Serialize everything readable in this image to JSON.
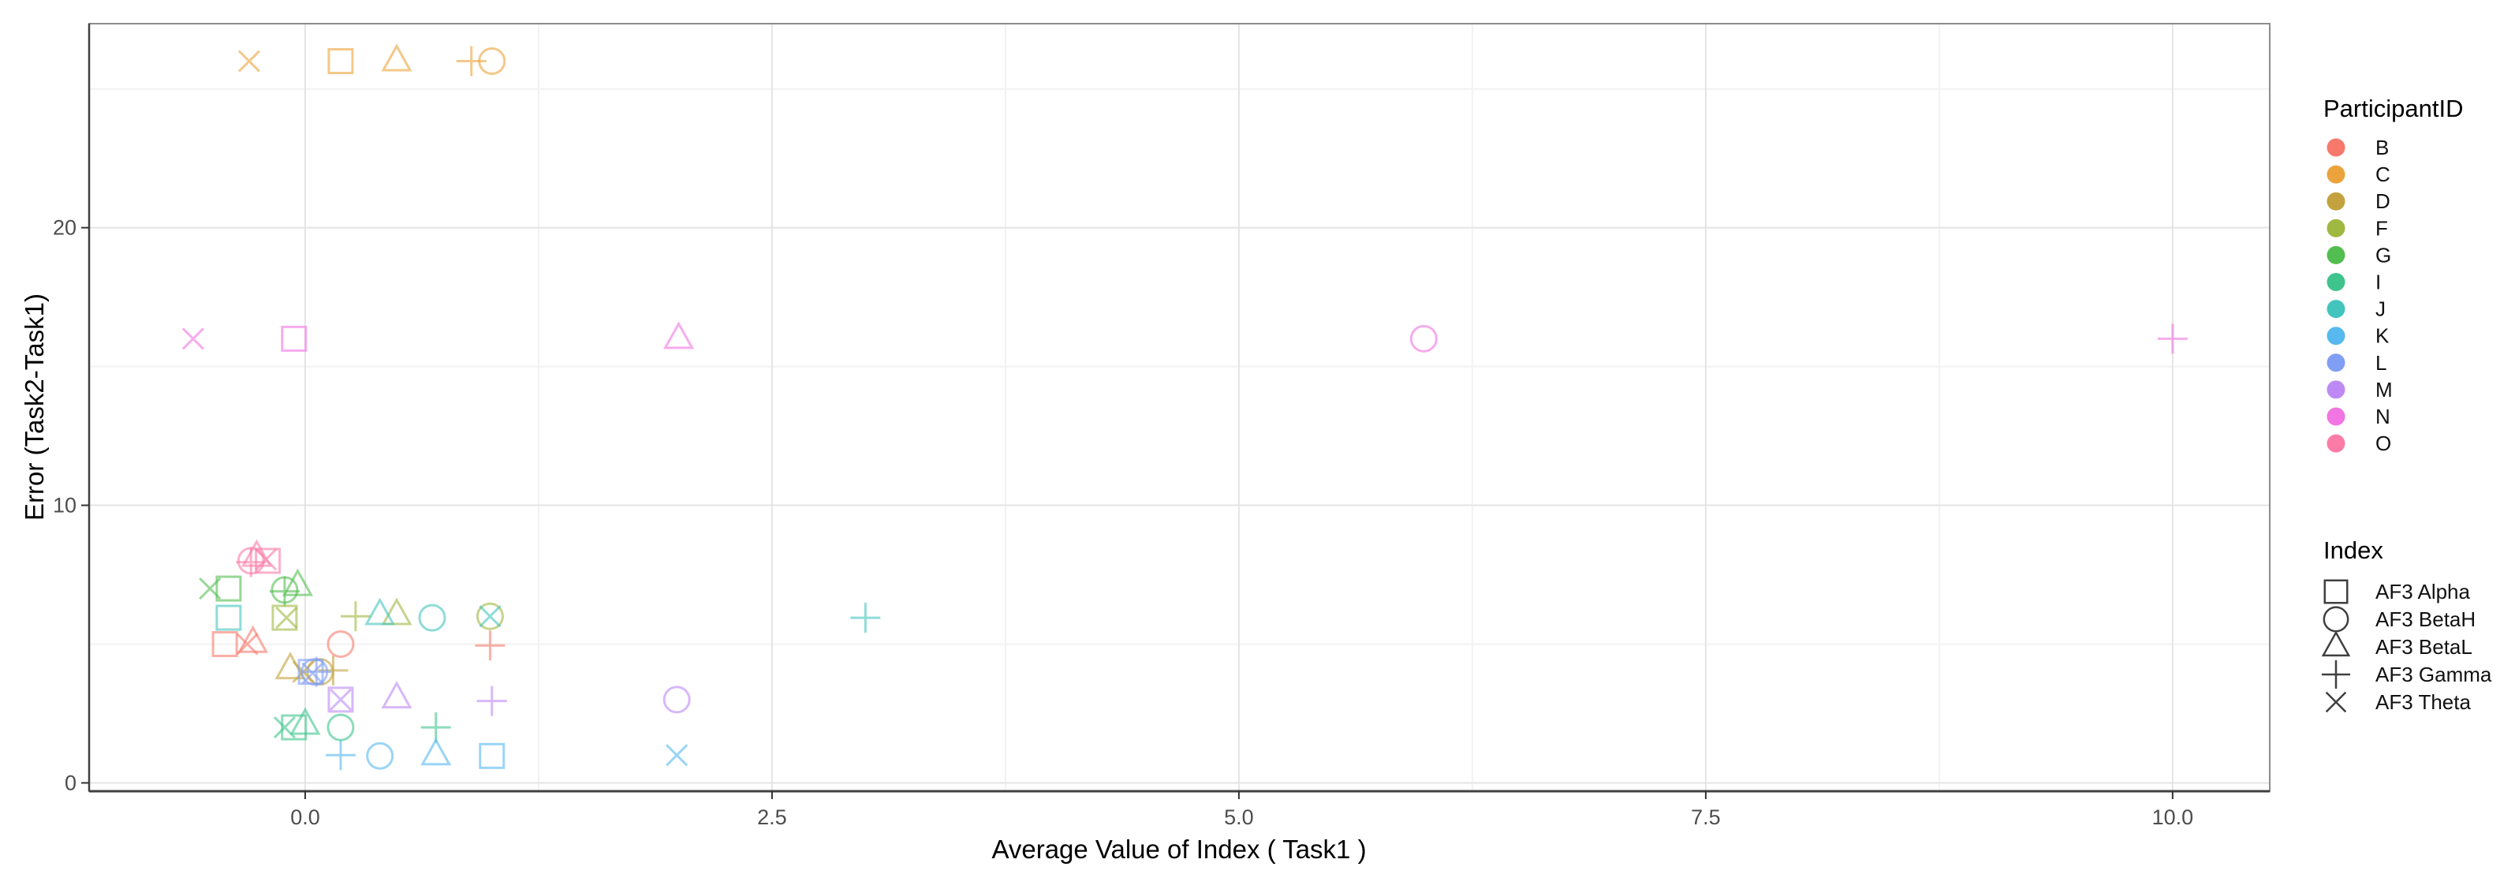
{
  "chart_data": {
    "type": "scatter",
    "title": "",
    "xlabel": "Average Value of Index ( Task1 )",
    "ylabel": "Error (Task2-Task1)",
    "xlim": [
      -1.157,
      10.52
    ],
    "ylim": [
      -0.3,
      27.35
    ],
    "grid": true,
    "legend_position": "right",
    "x_ticks": [
      0.0,
      2.5,
      5.0,
      7.5,
      10.0
    ],
    "x_tick_labels": [
      "0.0",
      "2.5",
      "5.0",
      "7.5",
      "10.0"
    ],
    "x_minor": [
      1.25,
      3.75,
      6.25,
      8.75
    ],
    "y_ticks": [
      0,
      10,
      20
    ],
    "y_tick_labels": [
      "0",
      "10",
      "20"
    ],
    "y_minor": [
      5,
      15,
      25
    ],
    "legends": {
      "color": {
        "title": "ParticipantID",
        "entries": [
          {
            "label": "B",
            "color": "#F6796C"
          },
          {
            "label": "C",
            "color": "#EBA33B"
          },
          {
            "label": "D",
            "color": "#C3A23D"
          },
          {
            "label": "F",
            "color": "#9FB841"
          },
          {
            "label": "G",
            "color": "#53BE50"
          },
          {
            "label": "I",
            "color": "#3EC48C"
          },
          {
            "label": "J",
            "color": "#43C5BE"
          },
          {
            "label": "K",
            "color": "#57B9F0"
          },
          {
            "label": "L",
            "color": "#809FF4"
          },
          {
            "label": "M",
            "color": "#BD89F5"
          },
          {
            "label": "N",
            "color": "#F175E2"
          },
          {
            "label": "O",
            "color": "#FA7CA6"
          }
        ]
      },
      "shape": {
        "title": "Index",
        "entries": [
          {
            "label": "AF3 Alpha",
            "shape": "square"
          },
          {
            "label": "AF3 BetaH",
            "shape": "circle"
          },
          {
            "label": "AF3 BetaL",
            "shape": "triangle"
          },
          {
            "label": "AF3 Gamma",
            "shape": "plus"
          },
          {
            "label": "AF3 Theta",
            "shape": "x"
          }
        ]
      }
    },
    "points": [
      {
        "pid": "C",
        "shape": "x",
        "x": -0.3,
        "y": 26
      },
      {
        "pid": "C",
        "shape": "square",
        "x": 0.19,
        "y": 26
      },
      {
        "pid": "C",
        "shape": "triangle",
        "x": 0.49,
        "y": 26
      },
      {
        "pid": "C",
        "shape": "plus",
        "x": 0.89,
        "y": 26
      },
      {
        "pid": "C",
        "shape": "circle",
        "x": 1.0,
        "y": 26
      },
      {
        "pid": "N",
        "shape": "x",
        "x": -0.6,
        "y": 16
      },
      {
        "pid": "N",
        "shape": "square",
        "x": -0.06,
        "y": 16
      },
      {
        "pid": "N",
        "shape": "triangle",
        "x": 2.0,
        "y": 16
      },
      {
        "pid": "N",
        "shape": "circle",
        "x": 5.99,
        "y": 16
      },
      {
        "pid": "N",
        "shape": "plus",
        "x": 10.0,
        "y": 16
      },
      {
        "pid": "O",
        "shape": "circle",
        "x": -0.29,
        "y": 8.0
      },
      {
        "pid": "O",
        "shape": "plus",
        "x": -0.29,
        "y": 7.95
      },
      {
        "pid": "O",
        "shape": "triangle",
        "x": -0.26,
        "y": 8.15
      },
      {
        "pid": "O",
        "shape": "x",
        "x": -0.21,
        "y": 8.05
      },
      {
        "pid": "O",
        "shape": "square",
        "x": -0.2,
        "y": 8.0
      },
      {
        "pid": "G",
        "shape": "x",
        "x": -0.51,
        "y": 7.0
      },
      {
        "pid": "G",
        "shape": "square",
        "x": -0.41,
        "y": 7.0
      },
      {
        "pid": "G",
        "shape": "circle",
        "x": -0.11,
        "y": 6.95
      },
      {
        "pid": "G",
        "shape": "plus",
        "x": -0.11,
        "y": 6.9
      },
      {
        "pid": "G",
        "shape": "triangle",
        "x": -0.04,
        "y": 7.1
      },
      {
        "pid": "F",
        "shape": "square",
        "x": -0.11,
        "y": 5.95
      },
      {
        "pid": "F",
        "shape": "x",
        "x": -0.1,
        "y": 5.95
      },
      {
        "pid": "F",
        "shape": "plus",
        "x": 0.27,
        "y": 6.0
      },
      {
        "pid": "F",
        "shape": "triangle",
        "x": 0.49,
        "y": 6.05
      },
      {
        "pid": "F",
        "shape": "circle",
        "x": 0.99,
        "y": 6.0
      },
      {
        "pid": "J",
        "shape": "square",
        "x": -0.41,
        "y": 5.95
      },
      {
        "pid": "J",
        "shape": "triangle",
        "x": 0.4,
        "y": 6.05
      },
      {
        "pid": "J",
        "shape": "circle",
        "x": 0.68,
        "y": 5.95
      },
      {
        "pid": "J",
        "shape": "x",
        "x": 0.99,
        "y": 6.0
      },
      {
        "pid": "J",
        "shape": "plus",
        "x": 3.0,
        "y": 5.95
      },
      {
        "pid": "B",
        "shape": "square",
        "x": -0.43,
        "y": 5.0
      },
      {
        "pid": "B",
        "shape": "x",
        "x": -0.31,
        "y": 5.0
      },
      {
        "pid": "B",
        "shape": "triangle",
        "x": -0.28,
        "y": 5.05
      },
      {
        "pid": "B",
        "shape": "circle",
        "x": 0.19,
        "y": 5.0
      },
      {
        "pid": "B",
        "shape": "plus",
        "x": 0.99,
        "y": 4.95
      },
      {
        "pid": "D",
        "shape": "triangle",
        "x": -0.08,
        "y": 4.1
      },
      {
        "pid": "D",
        "shape": "x",
        "x": -0.01,
        "y": 4.0
      },
      {
        "pid": "D",
        "shape": "circle",
        "x": 0.08,
        "y": 4.0
      },
      {
        "pid": "D",
        "shape": "plus",
        "x": 0.15,
        "y": 4.05
      },
      {
        "pid": "L",
        "shape": "square",
        "x": 0.03,
        "y": 4.0
      },
      {
        "pid": "L",
        "shape": "circle",
        "x": 0.05,
        "y": 4.0
      },
      {
        "pid": "L",
        "shape": "x",
        "x": 0.04,
        "y": 3.95
      },
      {
        "pid": "L",
        "shape": "plus",
        "x": 0.06,
        "y": 4.0
      },
      {
        "pid": "M",
        "shape": "square",
        "x": 0.19,
        "y": 3.0
      },
      {
        "pid": "M",
        "shape": "x",
        "x": 0.19,
        "y": 3.0
      },
      {
        "pid": "M",
        "shape": "triangle",
        "x": 0.49,
        "y": 3.05
      },
      {
        "pid": "M",
        "shape": "plus",
        "x": 1.0,
        "y": 2.95
      },
      {
        "pid": "M",
        "shape": "circle",
        "x": 1.99,
        "y": 3.0
      },
      {
        "pid": "I",
        "shape": "x",
        "x": -0.11,
        "y": 2.0
      },
      {
        "pid": "I",
        "shape": "square",
        "x": -0.06,
        "y": 2.0
      },
      {
        "pid": "I",
        "shape": "triangle",
        "x": 0.0,
        "y": 2.1
      },
      {
        "pid": "I",
        "shape": "circle",
        "x": 0.19,
        "y": 2.0
      },
      {
        "pid": "I",
        "shape": "plus",
        "x": 0.7,
        "y": 2.0
      },
      {
        "pid": "K",
        "shape": "plus",
        "x": 0.19,
        "y": 1.0
      },
      {
        "pid": "K",
        "shape": "circle",
        "x": 0.4,
        "y": 0.97
      },
      {
        "pid": "K",
        "shape": "triangle",
        "x": 0.7,
        "y": 1.0
      },
      {
        "pid": "K",
        "shape": "square",
        "x": 1.0,
        "y": 0.97
      },
      {
        "pid": "K",
        "shape": "x",
        "x": 1.99,
        "y": 1.0
      }
    ]
  }
}
